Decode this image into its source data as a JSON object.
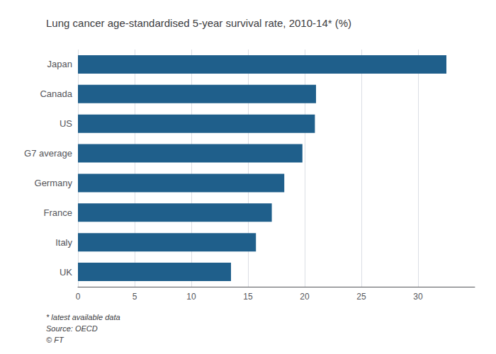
{
  "chart_data": {
    "type": "bar",
    "orientation": "horizontal",
    "title": "Lung cancer age-standardised 5-year survival rate, 2010-14* (%)",
    "categories": [
      "UK",
      "Italy",
      "France",
      "Germany",
      "G7 average",
      "US",
      "Canada",
      "Japan"
    ],
    "values": [
      13.5,
      15.7,
      17.1,
      18.2,
      19.8,
      20.9,
      21.0,
      32.5
    ],
    "color": "#1f5f8b",
    "xlim": [
      0,
      35
    ],
    "xticks": [
      0,
      5,
      10,
      15,
      20,
      25,
      30
    ],
    "grid": true,
    "annotations": [
      "* latest available data",
      "Source: OECD",
      "© FT"
    ]
  }
}
